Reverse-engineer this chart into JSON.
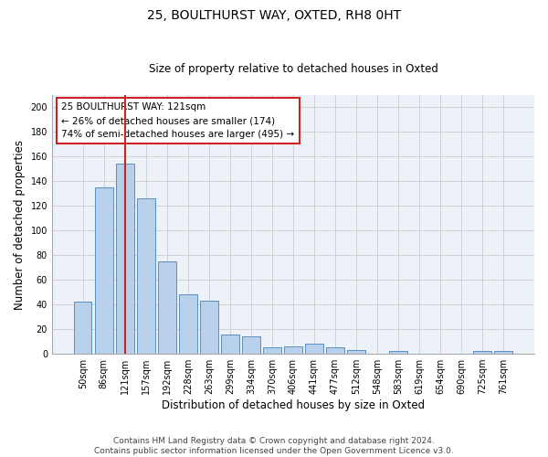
{
  "title": "25, BOULTHURST WAY, OXTED, RH8 0HT",
  "subtitle": "Size of property relative to detached houses in Oxted",
  "xlabel": "Distribution of detached houses by size in Oxted",
  "ylabel": "Number of detached properties",
  "categories": [
    "50sqm",
    "86sqm",
    "121sqm",
    "157sqm",
    "192sqm",
    "228sqm",
    "263sqm",
    "299sqm",
    "334sqm",
    "370sqm",
    "406sqm",
    "441sqm",
    "477sqm",
    "512sqm",
    "548sqm",
    "583sqm",
    "619sqm",
    "654sqm",
    "690sqm",
    "725sqm",
    "761sqm"
  ],
  "values": [
    42,
    135,
    154,
    126,
    75,
    48,
    43,
    16,
    14,
    5,
    6,
    8,
    5,
    3,
    0,
    2,
    0,
    0,
    0,
    2,
    2
  ],
  "bar_color": "#b8d0ea",
  "bar_edge_color": "#5a8fc2",
  "highlight_index": 2,
  "highlight_line_color": "#cc2222",
  "annotation_line1": "25 BOULTHURST WAY: 121sqm",
  "annotation_line2": "← 26% of detached houses are smaller (174)",
  "annotation_line3": "74% of semi-detached houses are larger (495) →",
  "annotation_box_color": "white",
  "annotation_box_edge_color": "#cc2222",
  "ylim": [
    0,
    210
  ],
  "yticks": [
    0,
    20,
    40,
    60,
    80,
    100,
    120,
    140,
    160,
    180,
    200
  ],
  "grid_color": "#cccccc",
  "background_color": "#edf2f9",
  "footer": "Contains HM Land Registry data © Crown copyright and database right 2024.\nContains public sector information licensed under the Open Government Licence v3.0.",
  "title_fontsize": 10,
  "subtitle_fontsize": 8.5,
  "xlabel_fontsize": 8.5,
  "ylabel_fontsize": 8.5,
  "tick_fontsize": 7,
  "footer_fontsize": 6.5
}
